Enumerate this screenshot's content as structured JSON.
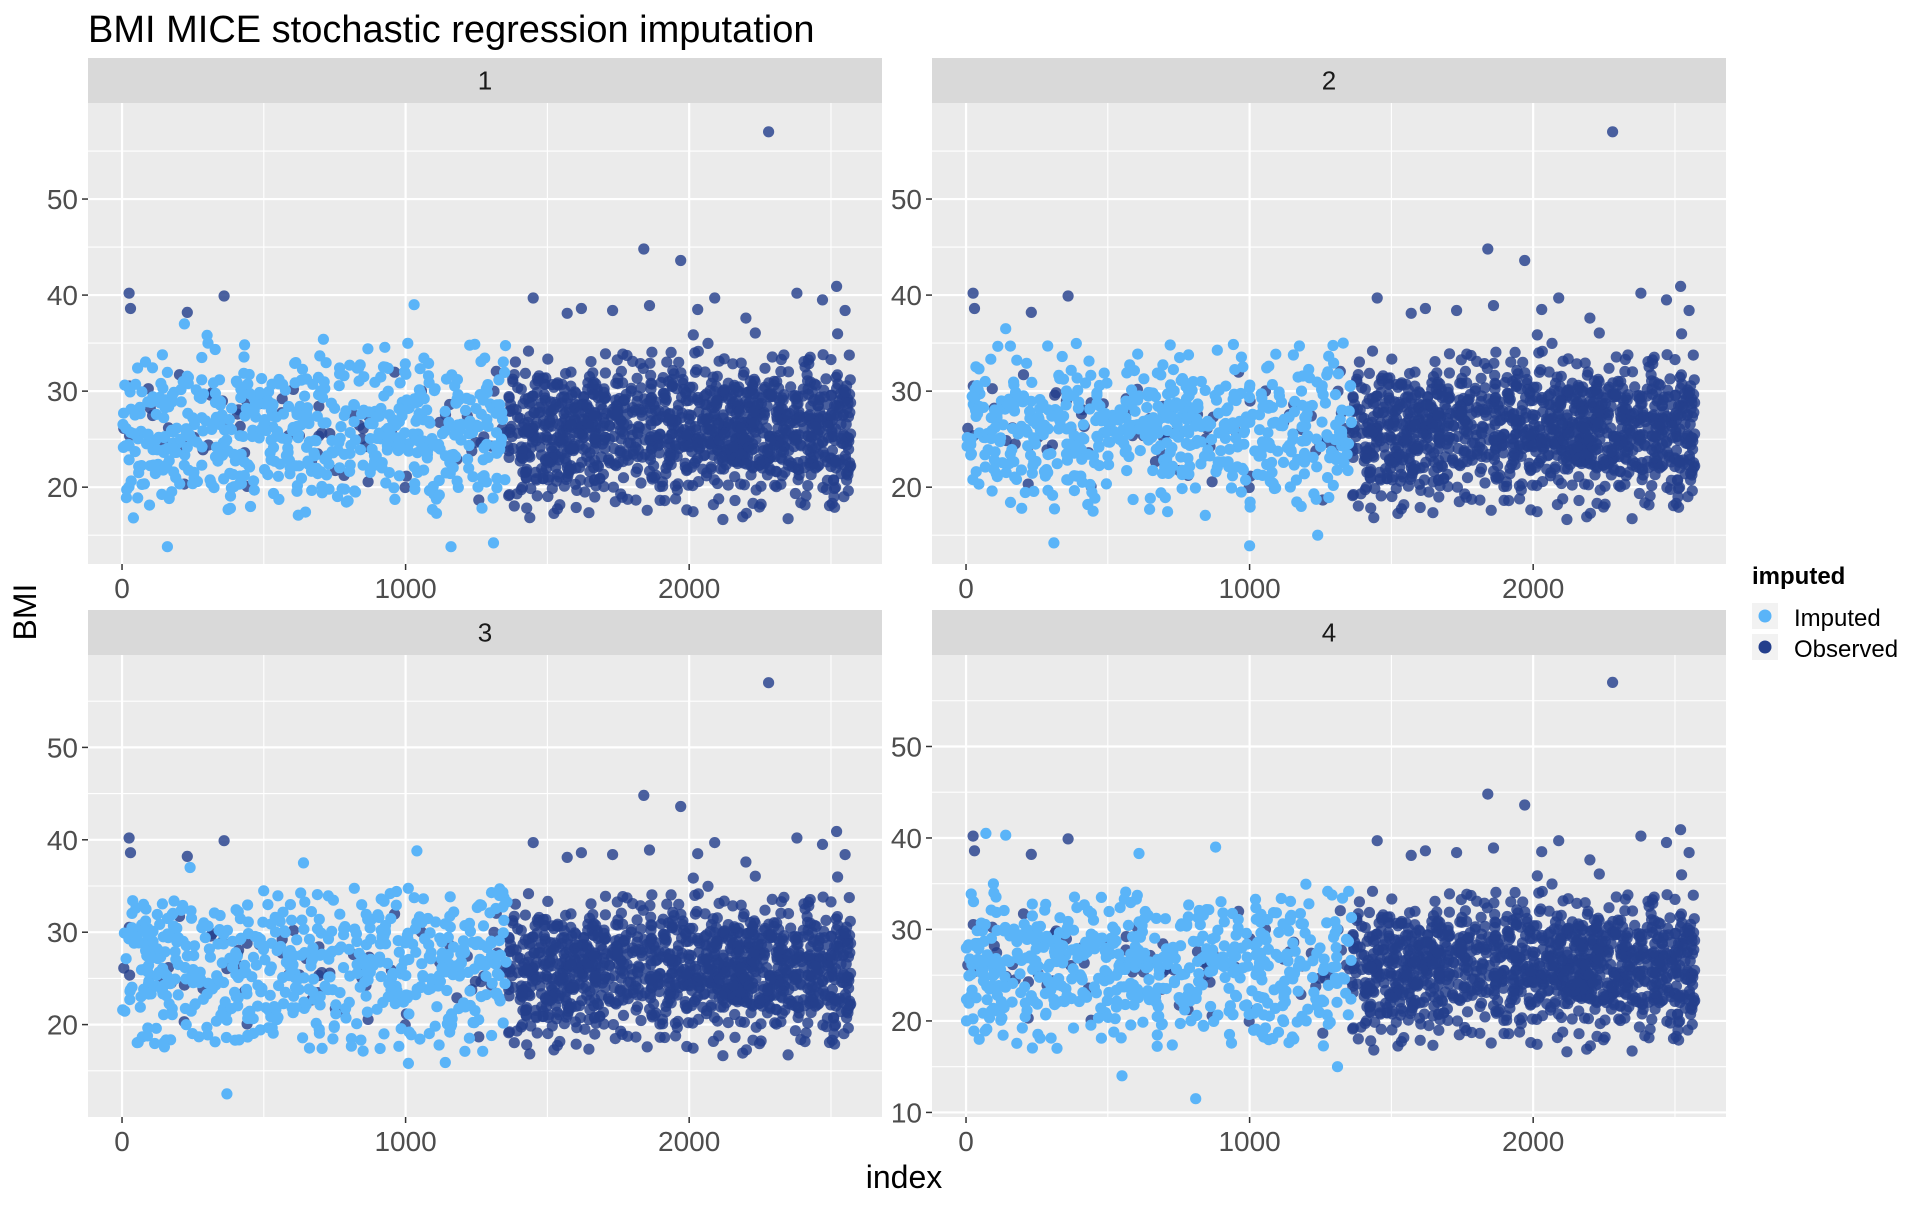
{
  "chart_data": {
    "type": "scatter",
    "title": "BMI MICE stochastic regression imputation",
    "xlabel": "index",
    "ylabel": "BMI",
    "legend": {
      "title": "imputed",
      "position": "right",
      "entries": [
        {
          "name": "Imputed",
          "color": "#5ab4f8"
        },
        {
          "name": "Observed",
          "color": "#243f8c"
        }
      ]
    },
    "grid": true,
    "facets": [
      {
        "label": "1",
        "xlim": [
          -120,
          2680
        ],
        "ylim": [
          12,
          60
        ],
        "xticks": [
          0,
          1000,
          2000
        ],
        "yticks": [
          20,
          30,
          40,
          50
        ],
        "imputed_range": [
          0,
          1360
        ],
        "imputed_center": 26,
        "imputed_sd": 4.2,
        "imputed_outliers": [
          [
            160,
            13.8
          ],
          [
            1160,
            13.8
          ],
          [
            1310,
            14.2
          ],
          [
            40,
            16.8
          ],
          [
            300,
            35.8
          ],
          [
            710,
            35.4
          ],
          [
            1030,
            39
          ],
          [
            220,
            37
          ]
        ]
      },
      {
        "label": "2",
        "xlim": [
          -120,
          2680
        ],
        "ylim": [
          12,
          60
        ],
        "xticks": [
          0,
          1000,
          2000
        ],
        "yticks": [
          20,
          30,
          40,
          50
        ],
        "imputed_range": [
          0,
          1360
        ],
        "imputed_center": 26,
        "imputed_sd": 4,
        "imputed_outliers": [
          [
            310,
            14.2
          ],
          [
            1000,
            13.9
          ],
          [
            1240,
            15
          ],
          [
            140,
            36.5
          ],
          [
            720,
            34.8
          ],
          [
            1330,
            35
          ]
        ]
      },
      {
        "label": "3",
        "xlim": [
          -120,
          2680
        ],
        "ylim": [
          10,
          60
        ],
        "xticks": [
          0,
          1000,
          2000
        ],
        "yticks": [
          20,
          30,
          40,
          50
        ],
        "imputed_range": [
          0,
          1360
        ],
        "imputed_center": 26,
        "imputed_sd": 4.5,
        "imputed_outliers": [
          [
            370,
            12.5
          ],
          [
            1010,
            15.8
          ],
          [
            1140,
            15.9
          ],
          [
            1040,
            38.8
          ],
          [
            640,
            37.5
          ],
          [
            240,
            37
          ]
        ]
      },
      {
        "label": "4",
        "xlim": [
          -120,
          2680
        ],
        "ylim": [
          9.5,
          60
        ],
        "xticks": [
          0,
          1000,
          2000
        ],
        "yticks": [
          10,
          20,
          30,
          40,
          50
        ],
        "imputed_range": [
          0,
          1360
        ],
        "imputed_center": 26,
        "imputed_sd": 4.3,
        "imputed_outliers": [
          [
            810,
            11.5
          ],
          [
            550,
            14
          ],
          [
            1310,
            15
          ],
          [
            70,
            40.5
          ],
          [
            140,
            40.3
          ],
          [
            880,
            39
          ],
          [
            610,
            38.3
          ]
        ]
      }
    ],
    "observed": {
      "early_range": [
        0,
        1360
      ],
      "early_count": 70,
      "late_range": [
        1360,
        2570
      ],
      "late_count": 1150,
      "center": 26,
      "sd": 3.6,
      "outliers": [
        [
          2280,
          57
        ],
        [
          1840,
          44.8
        ],
        [
          1970,
          43.6
        ],
        [
          25,
          40.2
        ],
        [
          30,
          38.6
        ],
        [
          360,
          39.9
        ],
        [
          230,
          38.2
        ],
        [
          2520,
          40.9
        ],
        [
          1450,
          39.7
        ],
        [
          1570,
          38.1
        ],
        [
          1730,
          38.4
        ],
        [
          2090,
          39.7
        ],
        [
          2380,
          40.2
        ],
        [
          2470,
          39.5
        ],
        [
          1860,
          38.9
        ],
        [
          2200,
          37.6
        ],
        [
          1620,
          38.6
        ],
        [
          2030,
          38.5
        ],
        [
          2550,
          38.4
        ]
      ]
    }
  }
}
